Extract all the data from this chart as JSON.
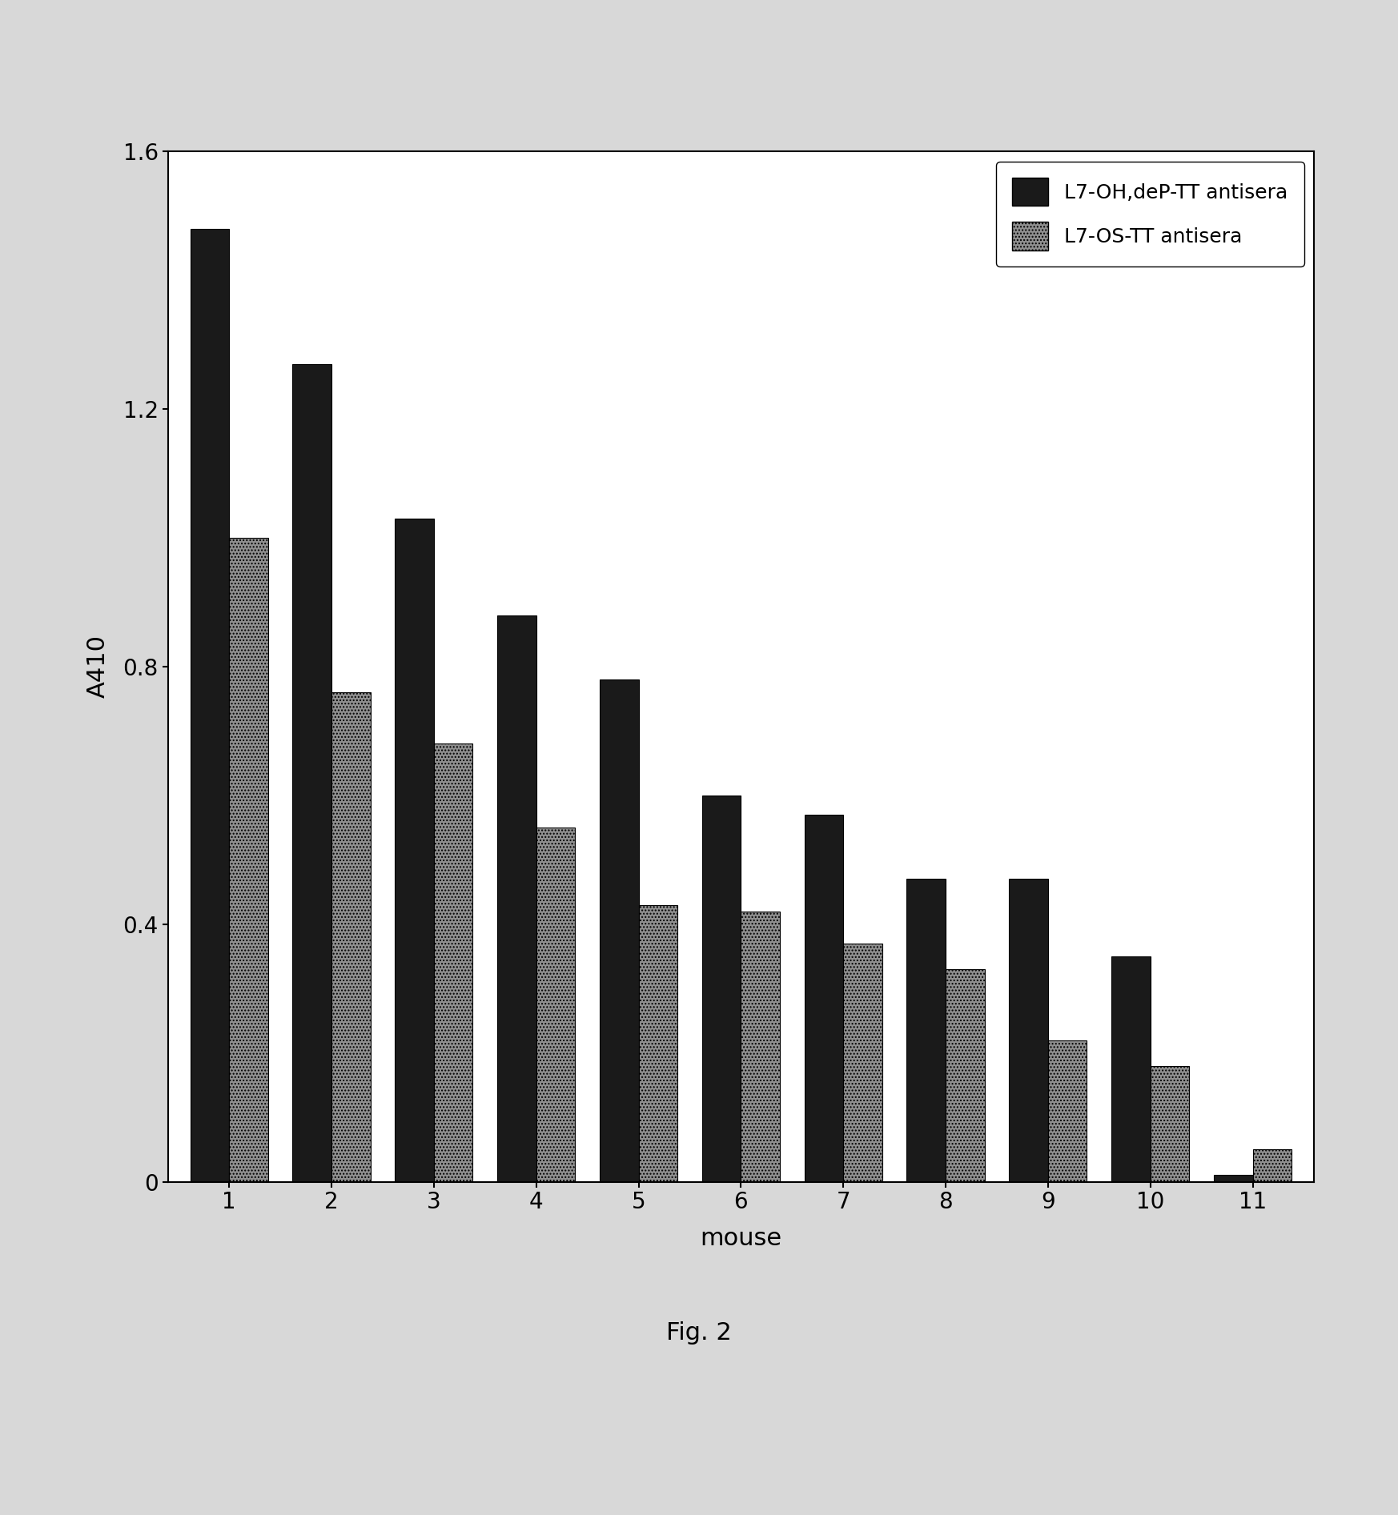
{
  "categories": [
    "1",
    "2",
    "3",
    "4",
    "5",
    "6",
    "7",
    "8",
    "9",
    "10",
    "11"
  ],
  "series1_label": "L7-OH,deP-TT antisera",
  "series2_label": "L7-OS-TT antisera",
  "series1_values": [
    1.48,
    1.27,
    1.03,
    0.88,
    0.78,
    0.6,
    0.57,
    0.47,
    0.47,
    0.35,
    0.01
  ],
  "series2_values": [
    1.0,
    0.76,
    0.68,
    0.55,
    0.43,
    0.42,
    0.37,
    0.33,
    0.22,
    0.18,
    0.05
  ],
  "series1_color": "#1a1a1a",
  "series2_color": "#888888",
  "xlabel": "mouse",
  "ylabel": "A410",
  "ylim": [
    0,
    1.6
  ],
  "yticks": [
    0,
    0.4,
    0.8,
    1.2,
    1.6
  ],
  "ytick_labels": [
    "0",
    "0.4",
    "0.8",
    "1.2",
    "1.6"
  ],
  "figcaption": "Fig. 2",
  "bar_width": 0.38,
  "page_bg_color": "#d8d8d8",
  "plot_bg_color": "#ffffff",
  "axis_fontsize": 22,
  "tick_fontsize": 20,
  "legend_fontsize": 18,
  "caption_fontsize": 22
}
